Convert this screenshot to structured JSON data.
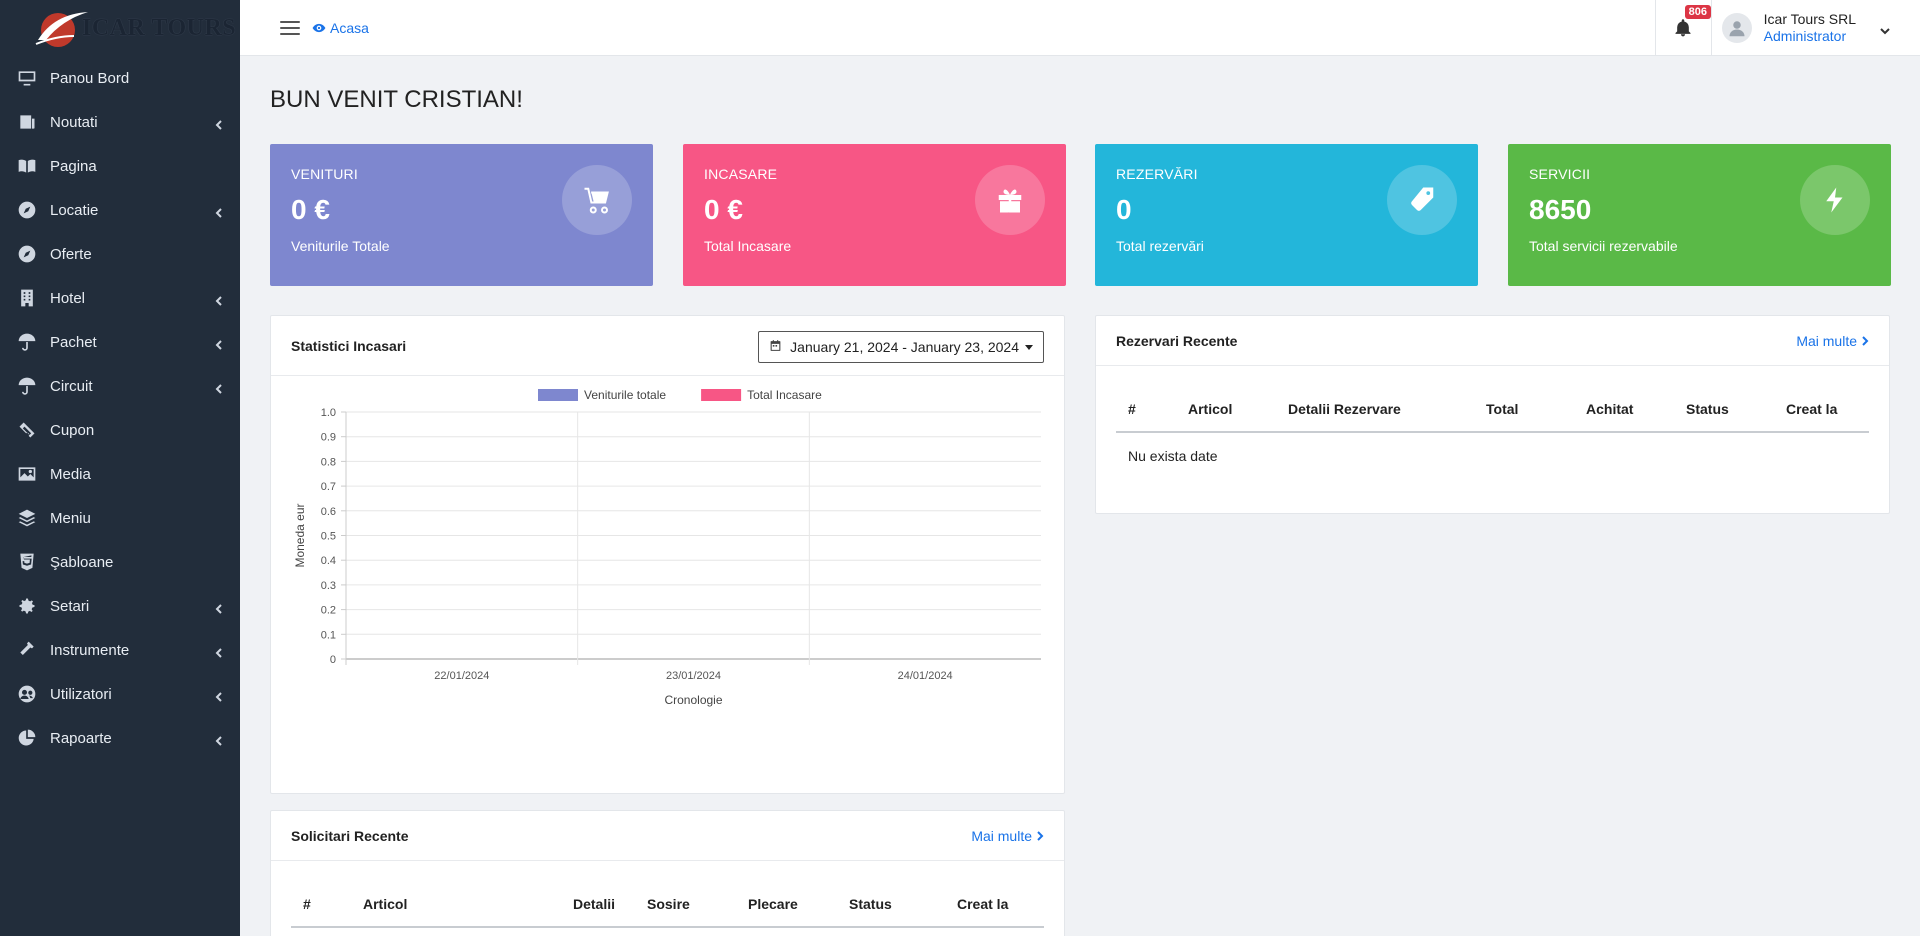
{
  "brand": {
    "logo_text": "ICAR TOURS"
  },
  "sidebar": {
    "items": [
      {
        "label": "Panou Bord",
        "icon": "monitor-icon",
        "has_submenu": false
      },
      {
        "label": "Noutati",
        "icon": "newspaper-icon",
        "has_submenu": true
      },
      {
        "label": "Pagina",
        "icon": "book-open-icon",
        "has_submenu": false
      },
      {
        "label": "Locatie",
        "icon": "compass-icon",
        "has_submenu": true
      },
      {
        "label": "Oferte",
        "icon": "compass-icon",
        "has_submenu": false
      },
      {
        "label": "Hotel",
        "icon": "building-icon",
        "has_submenu": true
      },
      {
        "label": "Pachet",
        "icon": "umbrella-icon",
        "has_submenu": true
      },
      {
        "label": "Circuit",
        "icon": "umbrella-icon",
        "has_submenu": true
      },
      {
        "label": "Cupon",
        "icon": "ticket-icon",
        "has_submenu": false
      },
      {
        "label": "Media",
        "icon": "image-icon",
        "has_submenu": false
      },
      {
        "label": "Meniu",
        "icon": "layers-icon",
        "has_submenu": false
      },
      {
        "label": "Şabloane",
        "icon": "html5-icon",
        "has_submenu": false
      },
      {
        "label": "Setari",
        "icon": "gear-icon",
        "has_submenu": true
      },
      {
        "label": "Instrumente",
        "icon": "hammer-icon",
        "has_submenu": true
      },
      {
        "label": "Utilizatori",
        "icon": "users-icon",
        "has_submenu": true
      },
      {
        "label": "Rapoarte",
        "icon": "pie-chart-icon",
        "has_submenu": true
      }
    ]
  },
  "topbar": {
    "breadcrumb": "Acasa",
    "notifications_badge": "806",
    "user_name": "Icar Tours SRL",
    "user_role": "Administrator"
  },
  "main": {
    "welcome": "BUN VENIT CRISTIAN!",
    "cards": [
      {
        "title": "VENITURI",
        "value": "0 €",
        "subtitle": "Veniturile Totale",
        "color": "#7e87cf",
        "icon": "cart-icon"
      },
      {
        "title": "INCASARE",
        "value": "0 €",
        "subtitle": "Total Incasare",
        "color": "#f75685",
        "icon": "gift-icon"
      },
      {
        "title": "REZERVĂRI",
        "value": "0",
        "subtitle": "Total rezervări",
        "color": "#23b6da",
        "icon": "tag-icon"
      },
      {
        "title": "SERVICII",
        "value": "8650",
        "subtitle": "Total servicii rezervabile",
        "color": "#5ab947",
        "icon": "bolt-icon"
      }
    ],
    "stats_panel": {
      "title": "Statistici Incasari",
      "date_range": "January 21, 2024 - January 23, 2024"
    },
    "recent_bookings": {
      "title": "Rezervari Recente",
      "more": "Mai multe",
      "columns": [
        "#",
        "Articol",
        "Detalii Rezervare",
        "Total",
        "Achitat",
        "Status",
        "Creat la"
      ],
      "empty": "Nu exista date"
    },
    "recent_requests": {
      "title": "Solicitari Recente",
      "more": "Mai multe",
      "columns": [
        "#",
        "Articol",
        "Detalii",
        "Sosire",
        "Plecare",
        "Status",
        "Creat la"
      ]
    }
  },
  "chart_data": {
    "type": "bar",
    "categories": [
      "22/01/2024",
      "23/01/2024",
      "24/01/2024"
    ],
    "series": [
      {
        "name": "Veniturile totale",
        "values": [
          0,
          0,
          0
        ],
        "color": "#7e87cf"
      },
      {
        "name": "Total Incasare",
        "values": [
          0,
          0,
          0
        ],
        "color": "#f75685"
      }
    ],
    "xlabel": "Cronologie",
    "ylabel": "Moneda eur",
    "ylim": [
      0,
      1.0
    ],
    "yticks": [
      "0",
      "0.1",
      "0.2",
      "0.3",
      "0.4",
      "0.5",
      "0.6",
      "0.7",
      "0.8",
      "0.9",
      "1.0"
    ],
    "legend": "top",
    "grid": true
  }
}
